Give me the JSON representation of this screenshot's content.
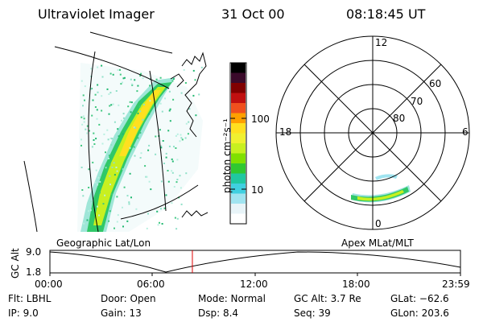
{
  "header": {
    "instrument": "Ultraviolet Imager",
    "date": "31 Oct 00",
    "time": "08:18:45 UT"
  },
  "colorbar": {
    "axis_label": "photon cm⁻²s⁻¹",
    "ticks": [
      "100",
      "10"
    ],
    "colors": [
      "#000000",
      "#3a0a2a",
      "#800000",
      "#c01010",
      "#f0501e",
      "#ffa000",
      "#ffe020",
      "#f0f030",
      "#c8f020",
      "#80e000",
      "#30c830",
      "#20c8a0",
      "#40d0e0",
      "#a0e4f0",
      "#e8f4f8",
      "#ffffff"
    ]
  },
  "polar_plot": {
    "labels": [
      "12",
      "18",
      "6",
      "0",
      "60",
      "70",
      "80"
    ]
  },
  "altitude_panel": {
    "ylabel": "GC Alt",
    "y_ticks": [
      "9.0",
      "1.8"
    ],
    "left_title": "Geographic Lat/Lon",
    "right_title": "Apex MLat/MLT",
    "x_ticks": [
      "00:00",
      "06:00",
      "12:00",
      "18:00",
      "23:59"
    ],
    "current_time_fraction": 0.347
  },
  "status": {
    "flt": "Flt: LBHL",
    "door": "Door: Open",
    "mode": "Mode: Normal",
    "gc_alt": "GC Alt: 3.7 Re",
    "glat": "GLat: −62.6",
    "ip": "IP:  9.0",
    "gain": "Gain: 13",
    "dsp": "Dsp:    8.4",
    "seq": "Seq: 39",
    "glon": "GLon: 203.6"
  }
}
